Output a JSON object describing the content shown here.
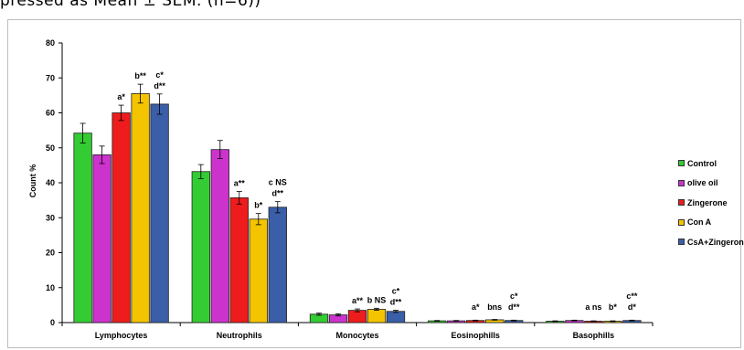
{
  "caption": "pressed   as   Mean  ±  SEM.   (n=6))",
  "legend": {
    "items": [
      {
        "label": "Control",
        "color": "#33cc33"
      },
      {
        "label": "olive oil",
        "color": "#cc33cc"
      },
      {
        "label": "Zingerone",
        "color": "#ee1c1c"
      },
      {
        "label": "Con A",
        "color": "#f5c400"
      },
      {
        "label": "CsA+Zingerone",
        "color": "#3a5fa8"
      }
    ]
  },
  "chart_data": {
    "type": "bar",
    "title": "",
    "xlabel": "",
    "ylabel": "Count %",
    "ylim": [
      0,
      80
    ],
    "yticks": [
      0,
      10,
      20,
      30,
      40,
      50,
      60,
      70,
      80
    ],
    "grid": false,
    "legend_position": "right",
    "categories": [
      "Lymphocytes",
      "Neutrophils",
      "Monocytes",
      "Eosinophills",
      "Basophills"
    ],
    "series": [
      {
        "name": "Control",
        "color": "#33cc33",
        "values": [
          54.2,
          43.2,
          2.4,
          0.5,
          0.4
        ],
        "errors": [
          2.8,
          2.0,
          0.3,
          0.1,
          0.1
        ]
      },
      {
        "name": "olive oil",
        "color": "#cc33cc",
        "values": [
          48.0,
          49.5,
          2.2,
          0.5,
          0.6
        ],
        "errors": [
          2.5,
          2.6,
          0.3,
          0.1,
          0.1
        ]
      },
      {
        "name": "Zingerone",
        "color": "#ee1c1c",
        "values": [
          60.0,
          35.7,
          3.5,
          0.6,
          0.4
        ],
        "errors": [
          2.2,
          1.8,
          0.4,
          0.1,
          0.1
        ]
      },
      {
        "name": "Con A",
        "color": "#f5c400",
        "values": [
          65.5,
          29.6,
          3.8,
          0.8,
          0.4
        ],
        "errors": [
          2.7,
          1.6,
          0.3,
          0.1,
          0.1
        ]
      },
      {
        "name": "CsA+Zingerone",
        "color": "#3a5fa8",
        "values": [
          62.5,
          33.0,
          3.2,
          0.6,
          0.6
        ],
        "errors": [
          2.9,
          1.6,
          0.3,
          0.1,
          0.1
        ]
      }
    ],
    "annotations": [
      {
        "category": "Lymphocytes",
        "series": "Zingerone",
        "lines": [
          "a*"
        ]
      },
      {
        "category": "Lymphocytes",
        "series": "Con A",
        "lines": [
          "b**"
        ]
      },
      {
        "category": "Lymphocytes",
        "series": "CsA+Zingerone",
        "lines": [
          "c*",
          "d**"
        ]
      },
      {
        "category": "Neutrophils",
        "series": "Zingerone",
        "lines": [
          "a**"
        ]
      },
      {
        "category": "Neutrophils",
        "series": "Con A",
        "lines": [
          "b*"
        ]
      },
      {
        "category": "Neutrophils",
        "series": "CsA+Zingerone",
        "lines": [
          "c NS",
          "d**"
        ]
      },
      {
        "category": "Monocytes",
        "series": "Zingerone",
        "lines": [
          "a**"
        ]
      },
      {
        "category": "Monocytes",
        "series": "Con A",
        "lines": [
          "b NS"
        ]
      },
      {
        "category": "Monocytes",
        "series": "CsA+Zingerone",
        "lines": [
          "c*",
          "d**"
        ]
      },
      {
        "category": "Eosinophills",
        "series": "Zingerone",
        "lines": [
          "a*"
        ]
      },
      {
        "category": "Eosinophills",
        "series": "Con A",
        "lines": [
          "bns"
        ]
      },
      {
        "category": "Eosinophills",
        "series": "CsA+Zingerone",
        "lines": [
          "c*",
          "d**"
        ]
      },
      {
        "category": "Basophills",
        "series": "Zingerone",
        "lines": [
          "a ns"
        ]
      },
      {
        "category": "Basophills",
        "series": "Con A",
        "lines": [
          "b*"
        ]
      },
      {
        "category": "Basophills",
        "series": "CsA+Zingerone",
        "lines": [
          "c**",
          "d*"
        ]
      }
    ]
  }
}
